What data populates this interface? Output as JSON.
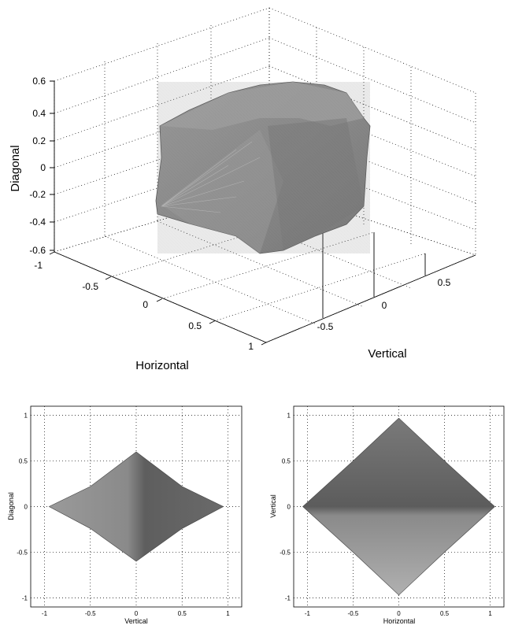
{
  "chart_data": [
    {
      "type": "surface3d",
      "title": "",
      "xlabel": "Horizontal",
      "ylabel": "Vertical",
      "zlabel": "Diagonal",
      "xlim": [
        -1,
        1
      ],
      "ylim": [
        -1,
        1
      ],
      "zlim": [
        -0.6,
        0.6
      ],
      "x_ticks": [
        "-1",
        "-0.5",
        "0",
        "0.5",
        "1"
      ],
      "y_ticks": [
        "-0.5",
        "0",
        "0.5"
      ],
      "z_ticks": [
        "0.6",
        "0.4",
        "0.2",
        "0",
        "-0.2",
        "-0.4",
        "-0.6"
      ],
      "grid": true,
      "surface_color": "#8c8c8c"
    },
    {
      "type": "surface_projection",
      "title": "",
      "xlabel": "Vertical",
      "ylabel": "Diagonal",
      "xlim": [
        -1.15,
        1.15
      ],
      "ylim": [
        -1.1,
        1.1
      ],
      "x_ticks": [
        "-1",
        "-0.5",
        "0",
        "0.5",
        "1"
      ],
      "y_ticks": [
        "1",
        "0.5",
        "0",
        "-0.5",
        "-1"
      ],
      "grid": true,
      "outline": [
        [
          -0.95,
          0
        ],
        [
          -0.5,
          0.22
        ],
        [
          0,
          0.6
        ],
        [
          0.5,
          0.22
        ],
        [
          0.95,
          0
        ],
        [
          0.5,
          -0.24
        ],
        [
          0,
          -0.6
        ],
        [
          -0.5,
          -0.24
        ]
      ],
      "surface_color": "#707070"
    },
    {
      "type": "surface_projection",
      "title": "",
      "xlabel": "Horizontal",
      "ylabel": "Vertical",
      "xlim": [
        -1.15,
        1.15
      ],
      "ylim": [
        -1.1,
        1.1
      ],
      "x_ticks": [
        "-1",
        "-0.5",
        "0",
        "0.5",
        "1"
      ],
      "y_ticks": [
        "1",
        "0.5",
        "0",
        "-0.5",
        "-1"
      ],
      "grid": true,
      "outline": [
        [
          -1.05,
          0
        ],
        [
          -0.5,
          0.5
        ],
        [
          0,
          0.97
        ],
        [
          0.5,
          0.5
        ],
        [
          1.05,
          0
        ],
        [
          0.5,
          -0.5
        ],
        [
          0,
          -0.97
        ],
        [
          -0.5,
          -0.5
        ]
      ],
      "surface_color": "#6e6e6e"
    }
  ]
}
